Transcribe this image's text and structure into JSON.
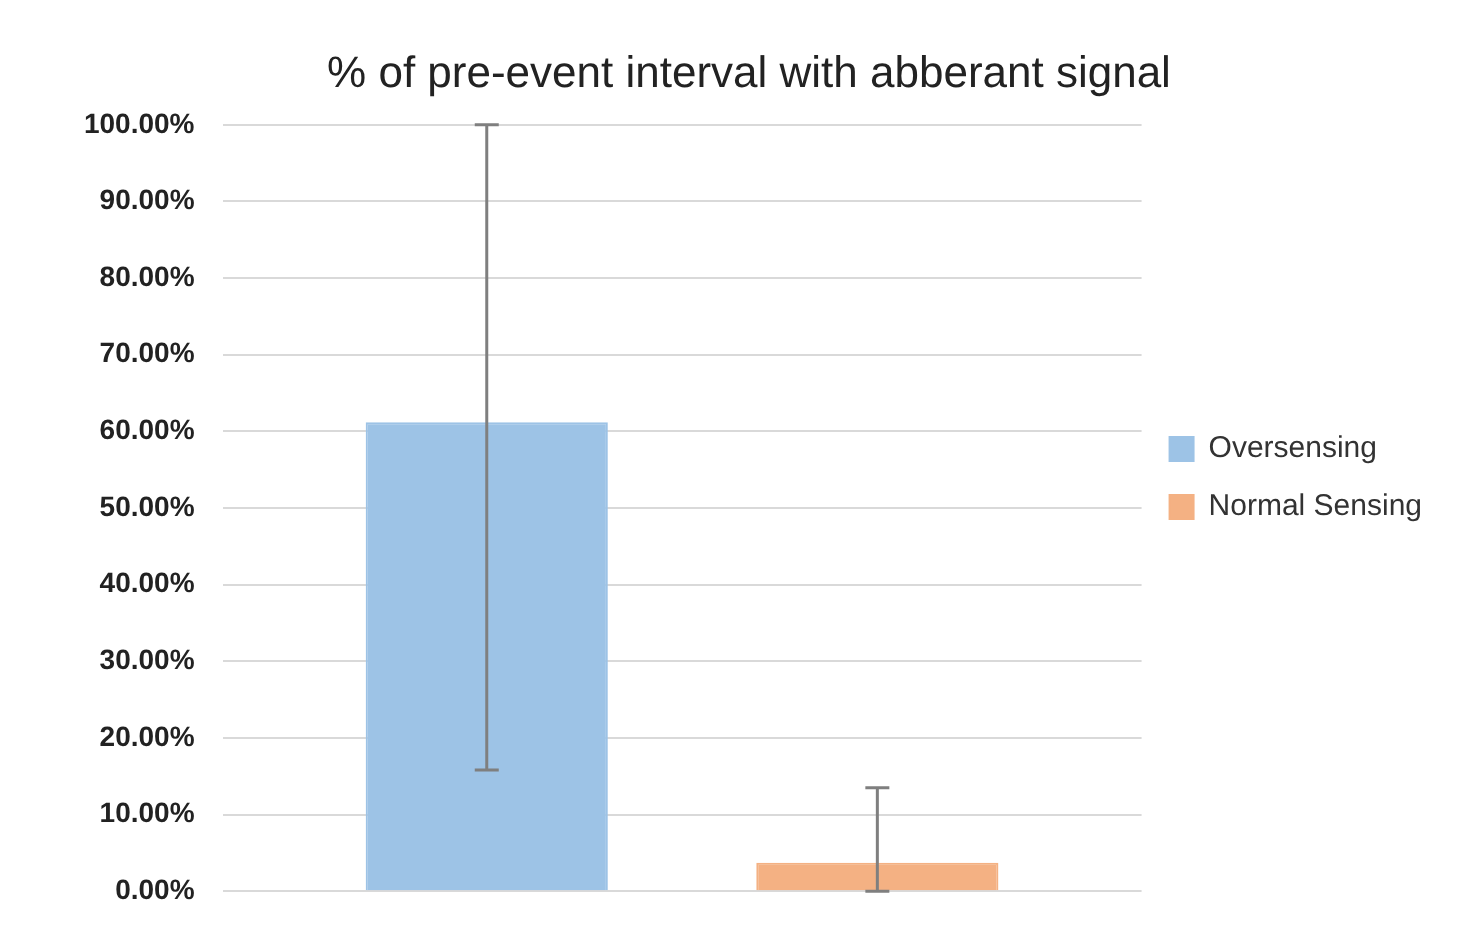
{
  "chart_data": {
    "type": "bar",
    "title": "% of pre-event interval with abberant signal",
    "categories": [
      null
    ],
    "series": [
      {
        "name": "Oversensing",
        "color": "#9dc3e6",
        "values": [
          61.2
        ],
        "errors": [
          [
            15.8,
            100
          ]
        ]
      },
      {
        "name": "Normal Sensing",
        "color": "#f4b183",
        "values": [
          3.7
        ],
        "errors": [
          [
            0,
            13.5
          ]
        ]
      }
    ],
    "ylim": [
      0,
      100
    ],
    "yticks": [
      {
        "value": 0,
        "label": "0.00%"
      },
      {
        "value": 10,
        "label": "10.00%"
      },
      {
        "value": 20,
        "label": "20.00%"
      },
      {
        "value": 30,
        "label": "30.00%"
      },
      {
        "value": 40,
        "label": "40.00%"
      },
      {
        "value": 50,
        "label": "50.00%"
      },
      {
        "value": 60,
        "label": "60.00%"
      },
      {
        "value": 70,
        "label": "70.00%"
      },
      {
        "value": 80,
        "label": "80.00%"
      },
      {
        "value": 90,
        "label": "90.00%"
      },
      {
        "value": 100,
        "label": "100.00%"
      }
    ],
    "grid": "y",
    "legend": "right"
  }
}
